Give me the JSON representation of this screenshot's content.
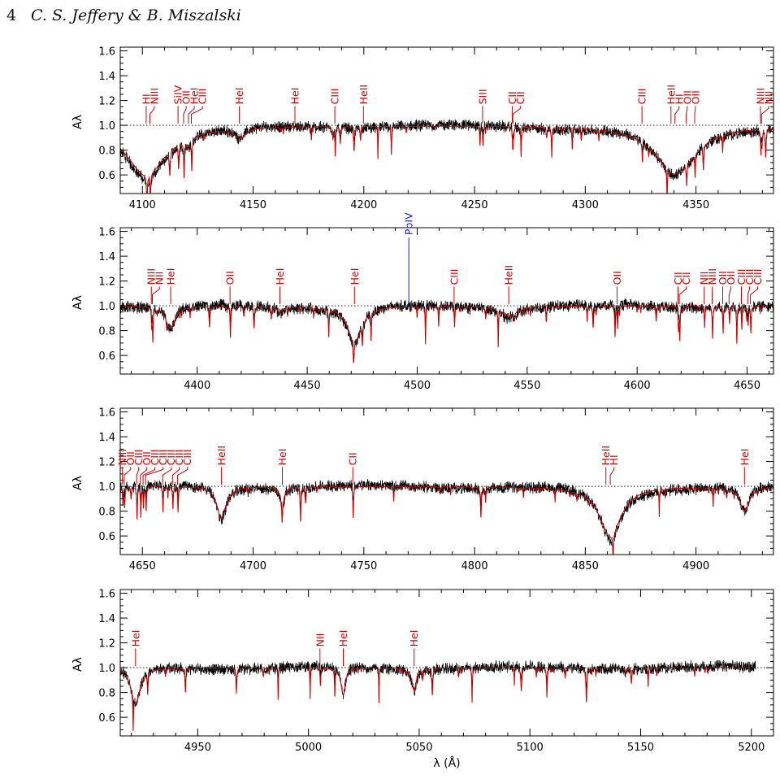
{
  "header": {
    "page_number": "4",
    "running_head": "C. S. Jeffery & B. Miszalski"
  },
  "colors": {
    "observed": "#000000",
    "model": "#d40000",
    "line_label": "#d40000",
    "pb_label": "#1a1adf",
    "reference": "#000000"
  },
  "chart_data": [
    {
      "type": "line",
      "ylabel": "Aλ",
      "xlim": [
        4090,
        4385
      ],
      "ylim": [
        0.45,
        1.63
      ],
      "xticks": [
        4100,
        4150,
        4200,
        4250,
        4300,
        4350
      ],
      "yticks": [
        0.6,
        0.8,
        1.0,
        1.2,
        1.4,
        1.6
      ],
      "ytick_labels": [
        "0.6",
        "0.8",
        "1.0",
        "1.2",
        "1.4",
        "1.6"
      ],
      "reference_level": 1.0,
      "broad_features": [
        {
          "center": 4101.7,
          "depth": 0.4,
          "width": 11
        },
        {
          "center": 4340.5,
          "depth": 0.39,
          "width": 11
        },
        {
          "center": 4144,
          "depth": 0.08,
          "width": 3
        },
        {
          "center": 4121,
          "depth": 0.06,
          "width": 1.5
        }
      ],
      "line_labels": [
        {
          "x": 4101.7,
          "text": "HI",
          "species": "H"
        },
        {
          "x": 4103.4,
          "text": "NIII",
          "species": "N"
        },
        {
          "x": 4116.1,
          "text": "SiIV",
          "species": "Si"
        },
        {
          "x": 4118.6,
          "text": "OII",
          "species": "O"
        },
        {
          "x": 4120.8,
          "text": "HeI",
          "species": "He"
        },
        {
          "x": 4122.1,
          "text": "CIII",
          "species": "C"
        },
        {
          "x": 4143.8,
          "text": "HeI",
          "species": "He"
        },
        {
          "x": 4168.9,
          "text": "HeI",
          "species": "He"
        },
        {
          "x": 4186.9,
          "text": "CIII",
          "species": "C"
        },
        {
          "x": 4199.8,
          "text": "HeII",
          "species": "He"
        },
        {
          "x": 4253.6,
          "text": "SIII",
          "species": "S"
        },
        {
          "x": 4267.0,
          "text": "CII",
          "species": "C"
        },
        {
          "x": 4267.3,
          "text": "CII",
          "species": "C"
        },
        {
          "x": 4325.6,
          "text": "CIII",
          "species": "C"
        },
        {
          "x": 4338.7,
          "text": "HeII",
          "species": "He"
        },
        {
          "x": 4340.5,
          "text": "HI",
          "species": "H"
        },
        {
          "x": 4345.6,
          "text": "OII",
          "species": "O"
        },
        {
          "x": 4349.4,
          "text": "OII",
          "species": "O"
        },
        {
          "x": 4379.1,
          "text": "NIII",
          "species": "N"
        },
        {
          "x": 4379.6,
          "text": "NII",
          "species": "N"
        }
      ]
    },
    {
      "type": "line",
      "ylabel": "Aλ",
      "xlim": [
        4365,
        4662
      ],
      "ylim": [
        0.45,
        1.63
      ],
      "xticks": [
        4400,
        4450,
        4500,
        4550,
        4600,
        4650
      ],
      "yticks": [
        0.6,
        0.8,
        1.0,
        1.2,
        1.4,
        1.6
      ],
      "ytick_labels": [
        "0.6",
        "0.8",
        "1.0",
        "1.2",
        "1.4",
        "1.6"
      ],
      "reference_level": 1.0,
      "broad_features": [
        {
          "center": 4471.5,
          "depth": 0.28,
          "width": 4
        },
        {
          "center": 4387.9,
          "depth": 0.18,
          "width": 2.5
        },
        {
          "center": 4541.6,
          "depth": 0.08,
          "width": 4
        },
        {
          "center": 4437.6,
          "depth": 0.05,
          "width": 1.5
        }
      ],
      "line_labels": [
        {
          "x": 4379.1,
          "text": "NIII",
          "species": "N"
        },
        {
          "x": 4379.6,
          "text": "NII",
          "species": "N"
        },
        {
          "x": 4387.9,
          "text": "HeI",
          "species": "He"
        },
        {
          "x": 4414.9,
          "text": "OII",
          "species": "O"
        },
        {
          "x": 4437.6,
          "text": "HeI",
          "species": "He"
        },
        {
          "x": 4471.5,
          "text": "HeI",
          "species": "He"
        },
        {
          "x": 4496.2,
          "text": "PbIV",
          "species": "Pb"
        },
        {
          "x": 4516.8,
          "text": "CIII",
          "species": "C"
        },
        {
          "x": 4541.6,
          "text": "HeII",
          "species": "He"
        },
        {
          "x": 4590.9,
          "text": "OII",
          "species": "O"
        },
        {
          "x": 4618.6,
          "text": "CII",
          "species": "C"
        },
        {
          "x": 4619.2,
          "text": "CII",
          "species": "C"
        },
        {
          "x": 4630.5,
          "text": "NII",
          "species": "N"
        },
        {
          "x": 4634.1,
          "text": "NIII",
          "species": "N"
        },
        {
          "x": 4638.9,
          "text": "OII",
          "species": "O"
        },
        {
          "x": 4641.8,
          "text": "OII",
          "species": "O"
        },
        {
          "x": 4647.4,
          "text": "CIII",
          "species": "C"
        },
        {
          "x": 4650.3,
          "text": "CIII",
          "species": "C"
        },
        {
          "x": 4651.5,
          "text": "CIII",
          "species": "C"
        }
      ]
    },
    {
      "type": "line",
      "ylabel": "Aλ",
      "xlim": [
        4640,
        4935
      ],
      "ylim": [
        0.45,
        1.63
      ],
      "xticks": [
        4650,
        4700,
        4750,
        4800,
        4850,
        4900
      ],
      "yticks": [
        0.6,
        0.8,
        1.0,
        1.2,
        1.4,
        1.6
      ],
      "ytick_labels": [
        "0.6",
        "0.8",
        "1.0",
        "1.2",
        "1.4",
        "1.6"
      ],
      "reference_level": 1.0,
      "broad_features": [
        {
          "center": 4861.3,
          "depth": 0.4,
          "width": 6
        },
        {
          "center": 4685.7,
          "depth": 0.25,
          "width": 2.5
        },
        {
          "center": 4921.9,
          "depth": 0.2,
          "width": 2.5
        },
        {
          "center": 4713.2,
          "depth": 0.12,
          "width": 1.2
        }
      ],
      "line_labels": [
        {
          "x": 4641.0,
          "text": "NIII",
          "species": "N"
        },
        {
          "x": 4641.8,
          "text": "OII",
          "species": "O"
        },
        {
          "x": 4647.4,
          "text": "CIII",
          "species": "C"
        },
        {
          "x": 4649.1,
          "text": "OII",
          "species": "O"
        },
        {
          "x": 4650.3,
          "text": "CIII",
          "species": "C"
        },
        {
          "x": 4651.5,
          "text": "CIII",
          "species": "C"
        },
        {
          "x": 4659.1,
          "text": "CIII",
          "species": "C"
        },
        {
          "x": 4663.6,
          "text": "CIII",
          "species": "C"
        },
        {
          "x": 4665.9,
          "text": "CIII",
          "species": "C"
        },
        {
          "x": 4685.7,
          "text": "HeII",
          "species": "He"
        },
        {
          "x": 4713.2,
          "text": "HeI",
          "species": "He"
        },
        {
          "x": 4745.0,
          "text": "CII",
          "species": "C"
        },
        {
          "x": 4859.3,
          "text": "HeII",
          "species": "He"
        },
        {
          "x": 4861.3,
          "text": "HI",
          "species": "H"
        },
        {
          "x": 4921.9,
          "text": "HeI",
          "species": "He"
        }
      ]
    },
    {
      "type": "line",
      "ylabel": "Aλ",
      "xlabel": "λ (Å)",
      "xlim": [
        4915,
        5210
      ],
      "ylim": [
        0.45,
        1.63
      ],
      "xticks": [
        4950,
        5000,
        5050,
        5100,
        5150,
        5200
      ],
      "yticks": [
        0.6,
        0.8,
        1.0,
        1.2,
        1.4,
        1.6
      ],
      "ytick_labels": [
        "0.6",
        "0.8",
        "1.0",
        "1.2",
        "1.4",
        "1.6"
      ],
      "reference_level": 1.0,
      "data_end": 5202,
      "broad_features": [
        {
          "center": 4921.9,
          "depth": 0.28,
          "width": 2.5
        },
        {
          "center": 5015.7,
          "depth": 0.22,
          "width": 1.2
        },
        {
          "center": 5047.7,
          "depth": 0.18,
          "width": 1.2
        }
      ],
      "line_labels": [
        {
          "x": 4921.9,
          "text": "HeI",
          "species": "He"
        },
        {
          "x": 5005.2,
          "text": "NII",
          "species": "N"
        },
        {
          "x": 5015.7,
          "text": "HeI",
          "species": "He"
        },
        {
          "x": 5047.7,
          "text": "HeI",
          "species": "He"
        }
      ]
    }
  ]
}
